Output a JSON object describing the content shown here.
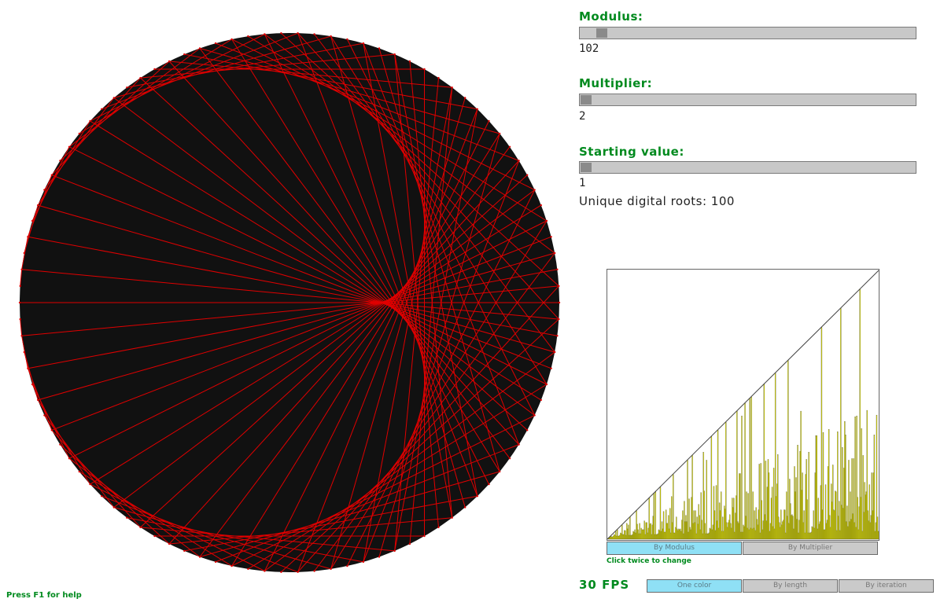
{
  "visualization": {
    "modulus": 102,
    "multiplier": 2,
    "starting_value": 1,
    "circle_fill": "#111111",
    "line_color": "#e00000"
  },
  "controls": {
    "modulus": {
      "label": "Modulus:",
      "value_text": "102",
      "value": 102,
      "min": 2,
      "max": 1000
    },
    "multiplier": {
      "label": "Multiplier:",
      "value_text": "2",
      "value": 2,
      "min": 2,
      "max": 100
    },
    "starting_value": {
      "label": "Starting value:",
      "value_text": "1",
      "value": 1,
      "min": 1,
      "max": 100
    }
  },
  "stats": {
    "unique_digital_roots": "Unique digital roots: 100"
  },
  "histogram": {
    "bar_color": "#e8e800",
    "toggle_buttons": [
      {
        "label": "By Modulus",
        "active": true
      },
      {
        "label": "By Multiplier",
        "active": false
      }
    ],
    "hint": "Click twice to change"
  },
  "fps": "30 FPS",
  "color_modes": [
    {
      "label": "One color",
      "active": true
    },
    {
      "label": "By length",
      "active": false
    },
    {
      "label": "By iteration",
      "active": false
    }
  ],
  "help": "Press F1 for help"
}
